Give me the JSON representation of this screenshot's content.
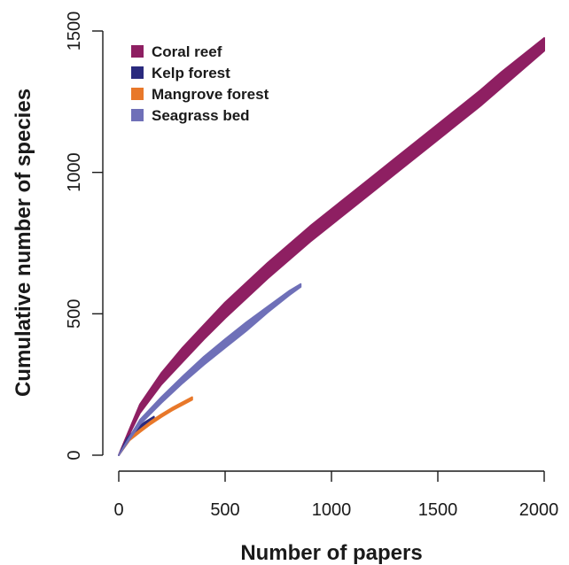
{
  "chart_data": {
    "type": "area",
    "xlabel": "Number of papers",
    "ylabel": "Cumulative number of species",
    "xlim": [
      0,
      2000
    ],
    "ylim": [
      0,
      1500
    ],
    "xticks": [
      0,
      500,
      1000,
      1500,
      2000
    ],
    "yticks": [
      0,
      500,
      1000,
      1500
    ],
    "xtick_labels": [
      "0",
      "500",
      "1000",
      "1500",
      "2000"
    ],
    "ytick_labels": [
      "0",
      "500",
      "1000",
      "1500"
    ],
    "grid": false,
    "legend": {
      "position": "top-left"
    },
    "series": [
      {
        "name": "Coral reef",
        "color": "#8e1f62",
        "x": [
          0,
          100,
          200,
          300,
          400,
          500,
          600,
          700,
          800,
          900,
          1000,
          1100,
          1200,
          1300,
          1400,
          1500,
          1600,
          1700,
          1800,
          1900,
          2000
        ],
        "lower": [
          0,
          150,
          250,
          330,
          410,
          485,
          555,
          625,
          690,
          755,
          815,
          875,
          935,
          995,
          1055,
          1115,
          1175,
          1235,
          1300,
          1365,
          1430
        ],
        "upper": [
          0,
          180,
          290,
          380,
          460,
          540,
          610,
          680,
          745,
          810,
          870,
          930,
          990,
          1050,
          1110,
          1170,
          1230,
          1290,
          1355,
          1415,
          1475
        ]
      },
      {
        "name": "Kelp forest",
        "color": "#2a2a7e",
        "x": [
          0,
          40,
          80,
          120,
          165
        ],
        "lower": [
          0,
          55,
          85,
          108,
          128
        ],
        "upper": [
          0,
          60,
          92,
          115,
          136
        ]
      },
      {
        "name": "Mangrove forest",
        "color": "#e8782a",
        "x": [
          0,
          50,
          100,
          150,
          200,
          250,
          300,
          345
        ],
        "lower": [
          0,
          52,
          82,
          110,
          135,
          158,
          178,
          196
        ],
        "upper": [
          0,
          58,
          90,
          119,
          144,
          167,
          187,
          205
        ]
      },
      {
        "name": "Seagrass bed",
        "color": "#6f70b8",
        "x": [
          0,
          100,
          200,
          300,
          400,
          500,
          600,
          700,
          800,
          855
        ],
        "lower": [
          0,
          110,
          185,
          255,
          320,
          380,
          440,
          505,
          565,
          595
        ],
        "upper": [
          0,
          125,
          205,
          278,
          348,
          410,
          470,
          525,
          580,
          605
        ]
      }
    ]
  }
}
